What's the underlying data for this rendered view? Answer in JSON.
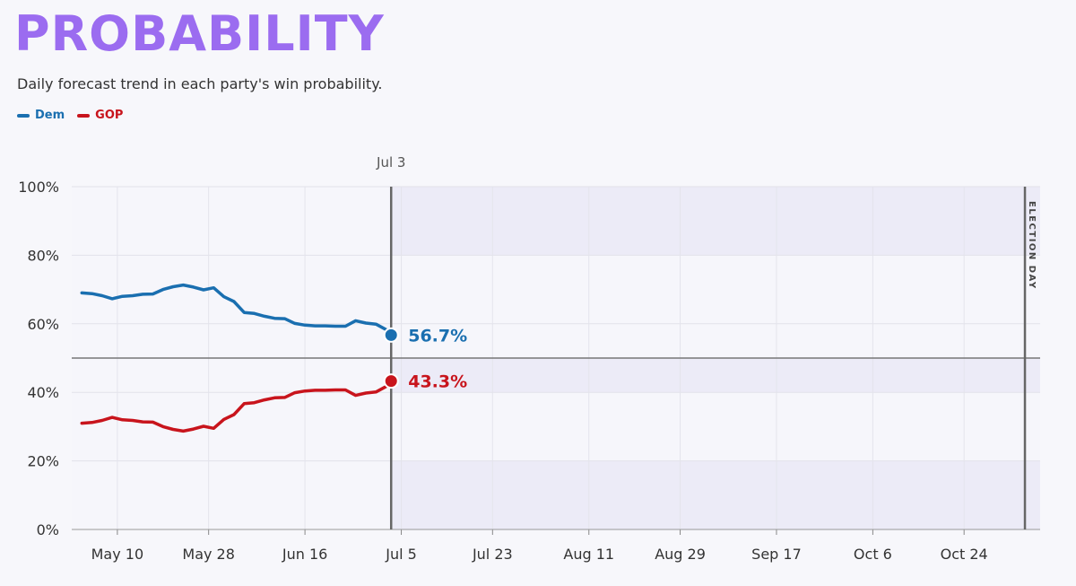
{
  "header": {
    "title": "PROBABILITY",
    "subtitle": "Daily forecast trend in each party's win probability."
  },
  "legend": [
    {
      "name": "Dem",
      "color": "#1a6fb0"
    },
    {
      "name": "GOP",
      "color": "#c8141c"
    }
  ],
  "current_date_label": "Jul 3",
  "election_day_label": "ELECTION DAY",
  "end_labels": {
    "dem": "56.7%",
    "gop": "43.3%"
  },
  "colors": {
    "dem": "#1a6fb0",
    "gop": "#c8141c",
    "accent": "#9b6cf0"
  },
  "chart_data": {
    "type": "line",
    "title": "PROBABILITY",
    "subtitle": "Daily forecast trend in each party's win probability.",
    "xlabel": "",
    "ylabel": "",
    "ylim": [
      0,
      100
    ],
    "y_ticks": [
      "0%",
      "20%",
      "40%",
      "60%",
      "80%",
      "100%"
    ],
    "x_ticks": [
      "May 10",
      "May 28",
      "Jun 16",
      "Jul 5",
      "Jul 23",
      "Aug 11",
      "Aug 29",
      "Sep 17",
      "Oct 6",
      "Oct 24"
    ],
    "x_dates": [
      "2024-05-03",
      "2024-05-05",
      "2024-05-07",
      "2024-05-09",
      "2024-05-11",
      "2024-05-13",
      "2024-05-15",
      "2024-05-17",
      "2024-05-19",
      "2024-05-21",
      "2024-05-23",
      "2024-05-25",
      "2024-05-27",
      "2024-05-29",
      "2024-05-31",
      "2024-06-02",
      "2024-06-04",
      "2024-06-06",
      "2024-06-08",
      "2024-06-10",
      "2024-06-12",
      "2024-06-14",
      "2024-06-16",
      "2024-06-18",
      "2024-06-20",
      "2024-06-22",
      "2024-06-24",
      "2024-06-26",
      "2024-06-28",
      "2024-06-30",
      "2024-07-02",
      "2024-07-03"
    ],
    "series": [
      {
        "name": "Dem",
        "values": [
          69.0,
          68.8,
          68.2,
          67.3,
          68.0,
          68.2,
          68.6,
          68.7,
          70.0,
          70.8,
          71.3,
          70.7,
          69.9,
          70.5,
          67.9,
          66.5,
          63.3,
          63.0,
          62.2,
          61.6,
          61.5,
          60.1,
          59.6,
          59.4,
          59.4,
          59.3,
          59.3,
          60.9,
          60.2,
          59.9,
          58.3,
          56.7
        ]
      },
      {
        "name": "GOP",
        "values": [
          31.0,
          31.2,
          31.8,
          32.7,
          32.0,
          31.8,
          31.4,
          31.3,
          30.0,
          29.2,
          28.7,
          29.3,
          30.1,
          29.5,
          32.1,
          33.5,
          36.7,
          37.0,
          37.8,
          38.4,
          38.5,
          39.9,
          40.4,
          40.6,
          40.6,
          40.7,
          40.7,
          39.1,
          39.8,
          40.1,
          41.7,
          43.3
        ]
      }
    ],
    "current_date": "2024-07-03",
    "election_day": "2024-11-05",
    "grid": true,
    "legend_position": "top-left"
  }
}
